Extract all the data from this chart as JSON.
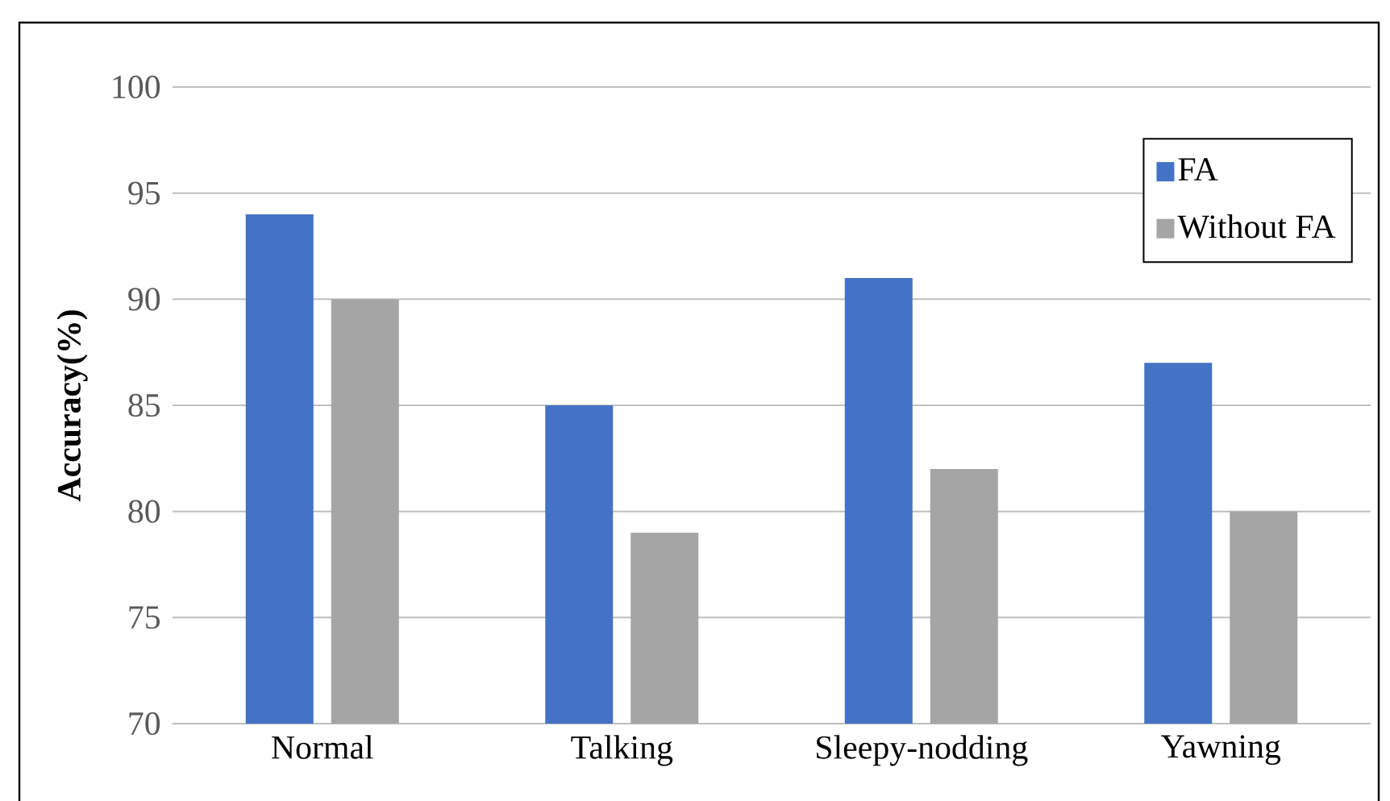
{
  "chart_data": {
    "type": "bar",
    "ylabel": "Accuracy(%)",
    "categories": [
      "Normal",
      "Talking",
      "Sleepy-nodding",
      "Yawning"
    ],
    "series": [
      {
        "name": "FA",
        "color": "#4472c4",
        "values": [
          94,
          85,
          91,
          87
        ]
      },
      {
        "name": "Without  FA",
        "color": "#a5a5a5",
        "values": [
          90,
          79,
          82,
          80
        ]
      }
    ],
    "ylim": [
      70,
      100
    ],
    "yticks": [
      70,
      75,
      80,
      85,
      90,
      95,
      100
    ],
    "grid": "y",
    "legend": "top right"
  }
}
